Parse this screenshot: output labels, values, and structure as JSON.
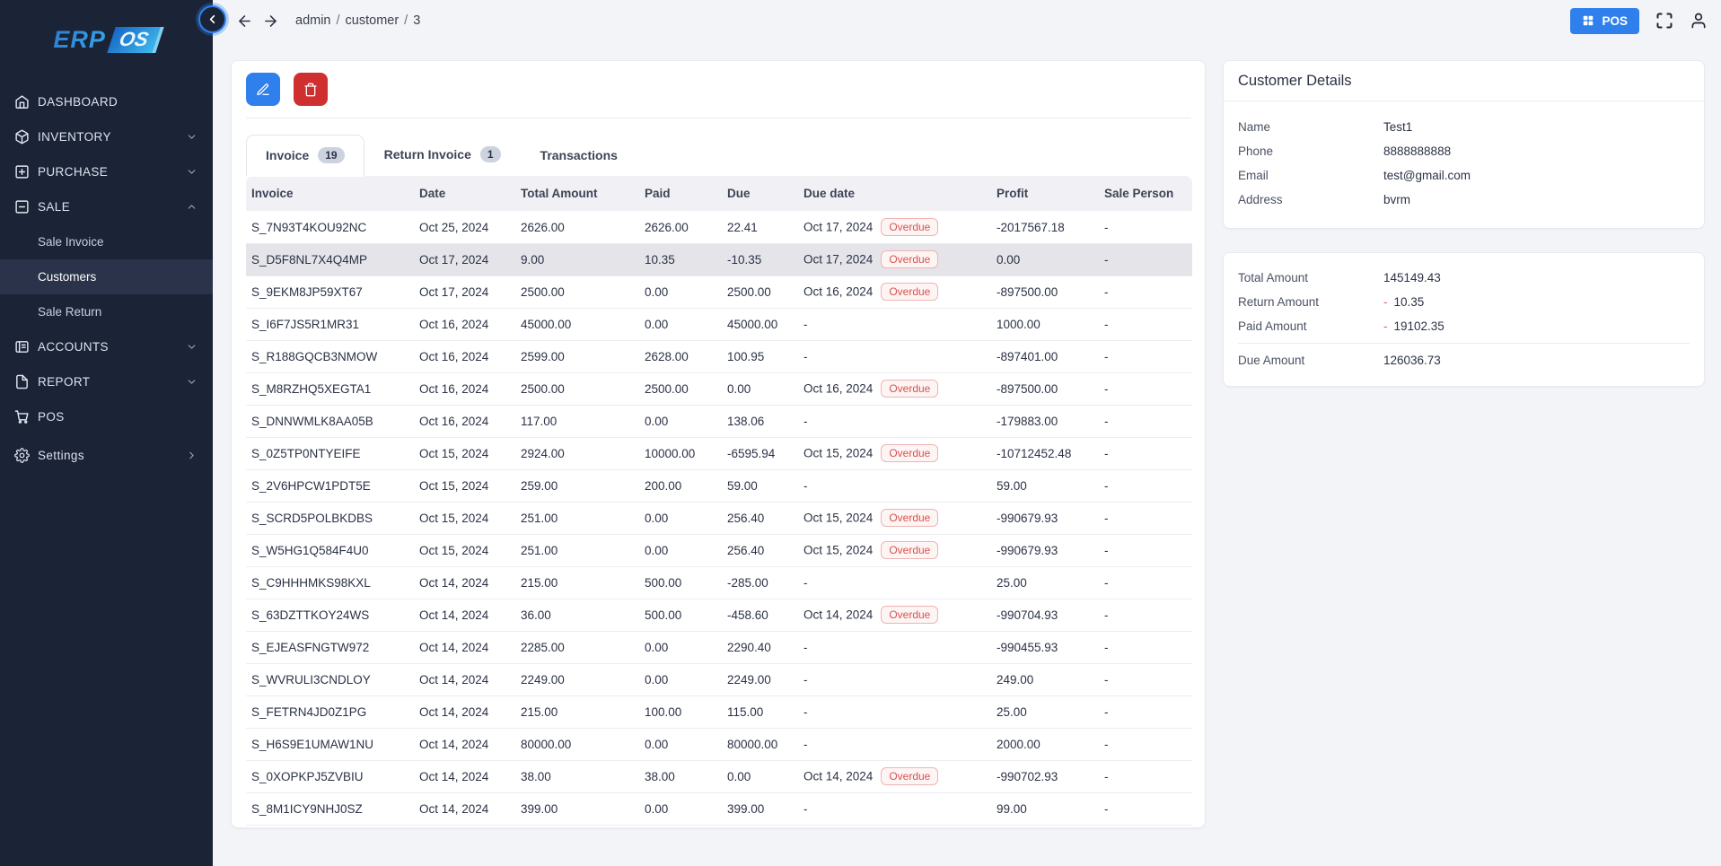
{
  "colors": {
    "sidebar_bg": "#1b2337",
    "sidebar_active_bg": "#2a3349",
    "accent_blue": "#2f80ed",
    "danger_red": "#d02f2f",
    "overdue_red": "#d9534f",
    "page_bg": "#f3f4f8",
    "row_highlight": "#e4e4e9"
  },
  "sidebar": {
    "logo": {
      "part1": "ERP",
      "part2": "OS"
    },
    "items": [
      {
        "label": "DASHBOARD",
        "icon": "home",
        "chevron": null
      },
      {
        "label": "INVENTORY",
        "icon": "box",
        "chevron": "down"
      },
      {
        "label": "PURCHASE",
        "icon": "plus-square",
        "chevron": "down"
      },
      {
        "label": "SALE",
        "icon": "minus-square",
        "chevron": "up",
        "expanded": true,
        "children": [
          {
            "label": "Sale Invoice",
            "active": false
          },
          {
            "label": "Customers",
            "active": true
          },
          {
            "label": "Sale Return",
            "active": false
          }
        ]
      },
      {
        "label": "ACCOUNTS",
        "icon": "ledger",
        "chevron": "down"
      },
      {
        "label": "REPORT",
        "icon": "file",
        "chevron": "down"
      },
      {
        "label": "POS",
        "icon": "cart",
        "chevron": null
      },
      {
        "label": "Settings",
        "icon": "gear",
        "chevron": "right",
        "settings": true
      }
    ]
  },
  "topbar": {
    "breadcrumb": [
      "admin",
      "customer",
      "3"
    ],
    "pos_button_label": "POS"
  },
  "main": {
    "tabs": [
      {
        "label": "Invoice",
        "badge": "19",
        "active": true
      },
      {
        "label": "Return Invoice",
        "badge": "1",
        "active": false
      },
      {
        "label": "Transactions",
        "badge": null,
        "active": false
      }
    ],
    "table": {
      "columns": [
        "Invoice",
        "Date",
        "Total Amount",
        "Paid",
        "Due",
        "Due date",
        "Profit",
        "Sale Person"
      ],
      "overdue_label": "Overdue",
      "rows": [
        {
          "invoice": "S_7N93T4KOU92NC",
          "date": "Oct 25, 2024",
          "total": "2626.00",
          "paid": "2626.00",
          "due": "22.41",
          "due_date": "Oct 17, 2024",
          "overdue": true,
          "profit": "-2017567.18",
          "sale_person": "-",
          "highlighted": false
        },
        {
          "invoice": "S_D5F8NL7X4Q4MP",
          "date": "Oct 17, 2024",
          "total": "9.00",
          "paid": "10.35",
          "due": "-10.35",
          "due_date": "Oct 17, 2024",
          "overdue": true,
          "profit": "0.00",
          "sale_person": "-",
          "highlighted": true
        },
        {
          "invoice": "S_9EKM8JP59XT67",
          "date": "Oct 17, 2024",
          "total": "2500.00",
          "paid": "0.00",
          "due": "2500.00",
          "due_date": "Oct 16, 2024",
          "overdue": true,
          "profit": "-897500.00",
          "sale_person": "-",
          "highlighted": false
        },
        {
          "invoice": "S_I6F7JS5R1MR31",
          "date": "Oct 16, 2024",
          "total": "45000.00",
          "paid": "0.00",
          "due": "45000.00",
          "due_date": "-",
          "overdue": false,
          "profit": "1000.00",
          "sale_person": "-",
          "highlighted": false
        },
        {
          "invoice": "S_R188GQCB3NMOW",
          "date": "Oct 16, 2024",
          "total": "2599.00",
          "paid": "2628.00",
          "due": "100.95",
          "due_date": "-",
          "overdue": false,
          "profit": "-897401.00",
          "sale_person": "-",
          "highlighted": false
        },
        {
          "invoice": "S_M8RZHQ5XEGTA1",
          "date": "Oct 16, 2024",
          "total": "2500.00",
          "paid": "2500.00",
          "due": "0.00",
          "due_date": "Oct 16, 2024",
          "overdue": true,
          "profit": "-897500.00",
          "sale_person": "-",
          "highlighted": false
        },
        {
          "invoice": "S_DNNWMLK8AA05B",
          "date": "Oct 16, 2024",
          "total": "117.00",
          "paid": "0.00",
          "due": "138.06",
          "due_date": "-",
          "overdue": false,
          "profit": "-179883.00",
          "sale_person": "-",
          "highlighted": false
        },
        {
          "invoice": "S_0Z5TP0NTYEIFE",
          "date": "Oct 15, 2024",
          "total": "2924.00",
          "paid": "10000.00",
          "due": "-6595.94",
          "due_date": "Oct 15, 2024",
          "overdue": true,
          "profit": "-10712452.48",
          "sale_person": "-",
          "highlighted": false
        },
        {
          "invoice": "S_2V6HPCW1PDT5E",
          "date": "Oct 15, 2024",
          "total": "259.00",
          "paid": "200.00",
          "due": "59.00",
          "due_date": "-",
          "overdue": false,
          "profit": "59.00",
          "sale_person": "-",
          "highlighted": false
        },
        {
          "invoice": "S_SCRD5POLBKDBS",
          "date": "Oct 15, 2024",
          "total": "251.00",
          "paid": "0.00",
          "due": "256.40",
          "due_date": "Oct 15, 2024",
          "overdue": true,
          "profit": "-990679.93",
          "sale_person": "-",
          "highlighted": false
        },
        {
          "invoice": "S_W5HG1Q584F4U0",
          "date": "Oct 15, 2024",
          "total": "251.00",
          "paid": "0.00",
          "due": "256.40",
          "due_date": "Oct 15, 2024",
          "overdue": true,
          "profit": "-990679.93",
          "sale_person": "-",
          "highlighted": false
        },
        {
          "invoice": "S_C9HHHMKS98KXL",
          "date": "Oct 14, 2024",
          "total": "215.00",
          "paid": "500.00",
          "due": "-285.00",
          "due_date": "-",
          "overdue": false,
          "profit": "25.00",
          "sale_person": "-",
          "highlighted": false
        },
        {
          "invoice": "S_63DZTTKOY24WS",
          "date": "Oct 14, 2024",
          "total": "36.00",
          "paid": "500.00",
          "due": "-458.60",
          "due_date": "Oct 14, 2024",
          "overdue": true,
          "profit": "-990704.93",
          "sale_person": "-",
          "highlighted": false
        },
        {
          "invoice": "S_EJEASFNGTW972",
          "date": "Oct 14, 2024",
          "total": "2285.00",
          "paid": "0.00",
          "due": "2290.40",
          "due_date": "-",
          "overdue": false,
          "profit": "-990455.93",
          "sale_person": "-",
          "highlighted": false
        },
        {
          "invoice": "S_WVRULI3CNDLOY",
          "date": "Oct 14, 2024",
          "total": "2249.00",
          "paid": "0.00",
          "due": "2249.00",
          "due_date": "-",
          "overdue": false,
          "profit": "249.00",
          "sale_person": "-",
          "highlighted": false
        },
        {
          "invoice": "S_FETRN4JD0Z1PG",
          "date": "Oct 14, 2024",
          "total": "215.00",
          "paid": "100.00",
          "due": "115.00",
          "due_date": "-",
          "overdue": false,
          "profit": "25.00",
          "sale_person": "-",
          "highlighted": false
        },
        {
          "invoice": "S_H6S9E1UMAW1NU",
          "date": "Oct 14, 2024",
          "total": "80000.00",
          "paid": "0.00",
          "due": "80000.00",
          "due_date": "-",
          "overdue": false,
          "profit": "2000.00",
          "sale_person": "-",
          "highlighted": false
        },
        {
          "invoice": "S_0XOPKPJ5ZVBIU",
          "date": "Oct 14, 2024",
          "total": "38.00",
          "paid": "38.00",
          "due": "0.00",
          "due_date": "Oct 14, 2024",
          "overdue": true,
          "profit": "-990702.93",
          "sale_person": "-",
          "highlighted": false
        },
        {
          "invoice": "S_8M1ICY9NHJ0SZ",
          "date": "Oct 14, 2024",
          "total": "399.00",
          "paid": "0.00",
          "due": "399.00",
          "due_date": "-",
          "overdue": false,
          "profit": "99.00",
          "sale_person": "-",
          "highlighted": false
        }
      ]
    }
  },
  "customer_details": {
    "title": "Customer Details",
    "fields": [
      {
        "label": "Name",
        "value": "Test1"
      },
      {
        "label": "Phone",
        "value": "8888888888"
      },
      {
        "label": "Email",
        "value": "test@gmail.com"
      },
      {
        "label": "Address",
        "value": "bvrm"
      }
    ]
  },
  "summary": {
    "rows": [
      {
        "label": "Total Amount",
        "value": "145149.43",
        "negative": false,
        "divider_before": false
      },
      {
        "label": "Return Amount",
        "value": "10.35",
        "negative": true,
        "divider_before": false
      },
      {
        "label": "Paid Amount",
        "value": "19102.35",
        "negative": true,
        "divider_before": false
      },
      {
        "label": "Due Amount",
        "value": "126036.73",
        "negative": false,
        "divider_before": true
      }
    ]
  }
}
